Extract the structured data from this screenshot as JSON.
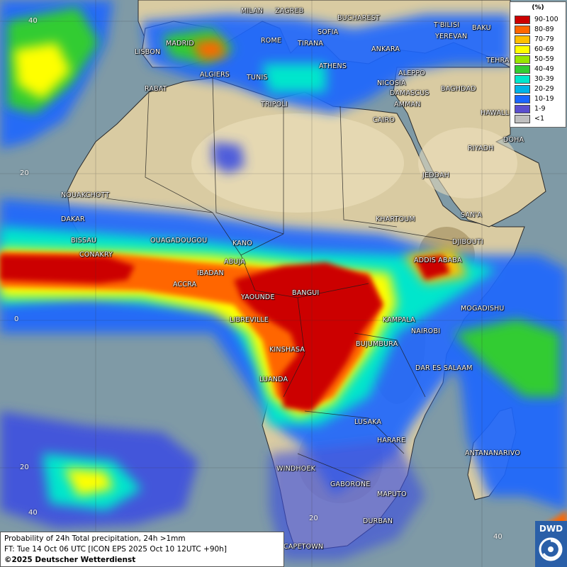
{
  "map": {
    "legend": {
      "title": "(%)",
      "items": [
        {
          "label": "90-100",
          "color": "#cc0000"
        },
        {
          "label": "80-89",
          "color": "#ff6600"
        },
        {
          "label": "70-79",
          "color": "#ffbf00"
        },
        {
          "label": "60-69",
          "color": "#ffff00"
        },
        {
          "label": "50-59",
          "color": "#99e600"
        },
        {
          "label": "40-49",
          "color": "#33cc33"
        },
        {
          "label": "30-39",
          "color": "#00e6cc"
        },
        {
          "label": "20-29",
          "color": "#00b3e6"
        },
        {
          "label": "10-19",
          "color": "#1a66ff"
        },
        {
          "label": "1-9",
          "color": "#5a4fcf"
        },
        {
          "label": "<1",
          "color": "#bfbfbf"
        }
      ]
    },
    "cities": {
      "milan": "MILAN",
      "zagreb": "ZAGREB",
      "bucharest": "BUCHAREST",
      "tbilisi": "T'BILISI",
      "baku": "BAKU",
      "yerevan": "YEREVAN",
      "lisbon": "LISBON",
      "madrid": "MADRID",
      "rome": "ROME",
      "sofia": "SOFIA",
      "tirana": "TIRANA",
      "ankara": "ANKARA",
      "tehran": "TEHRA",
      "algiers": "ALGIERS",
      "tunis": "TUNIS",
      "athens": "ATHENS",
      "aleppo": "ALEPPO",
      "rabat": "RABAT",
      "nicosia": "NICOSIA",
      "baghdad": "BAGHDAD",
      "damascus": "DAMASCUS",
      "tripoli": "TRIPOLI",
      "amman": "AMMAN",
      "cairo": "CAIRO",
      "hawalli": "HAWALLI",
      "doha": "DOHA",
      "riyadh": "RIYADH",
      "jeddah": "JEDDAH",
      "nouakchott": "NOUAKCHOTT",
      "dakar": "DAKAR",
      "khartoum": "KHARTOUM",
      "sanaa": "SAN'A",
      "bissau": "BISSAU",
      "ouagadougou": "OUAGADOUGOU",
      "kano": "KANO",
      "djibouti": "DJIBOUTI",
      "conakry": "CONAKRY",
      "abuja": "ABUJA",
      "addis": "ADDIS ABABA",
      "ibadan": "IBADAN",
      "accra": "ACCRA",
      "bangui": "BANGUI",
      "yaounde": "YAOUNDE",
      "mogadishu": "MOGADISHU",
      "libreville": "LIBREVILLE",
      "kampala": "KAMPALA",
      "nairobi": "NAIROBI",
      "bujumbura": "BUJUMBURA",
      "kinshasa": "KINSHASA",
      "dar": "DAR ES SALAAM",
      "luanda": "LUANDA",
      "lusaka": "LUSAKA",
      "harare": "HARARE",
      "antananarivo": "ANTANANARIVO",
      "windhoek": "WINDHOEK",
      "gaborone": "GABORONE",
      "maputo": "MAPUTO",
      "durban": "DURBAN",
      "capetown": "CAPETOWN"
    },
    "grid_labels": {
      "lat40": "40",
      "lat20n": "20",
      "lat0": "0",
      "lat20s": "20",
      "lat40s": "40",
      "lon20": "20",
      "lon40": "40"
    },
    "info": {
      "line1": "Probability of 24h Total precipitation, 24h >1mm",
      "line2": "FT: Tue 14 Oct 06 UTC [ICON EPS 2025 Oct 10 12UTC +90h]",
      "line3": "©2025 Deutscher Wetterdienst"
    },
    "logo": "DWD"
  }
}
